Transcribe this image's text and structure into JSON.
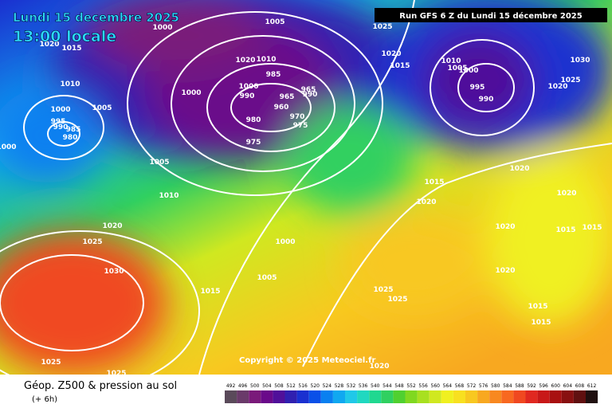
{
  "header": {
    "date": "Lundi 15 decembre 2025",
    "time": "13:00 locale",
    "run": "Run GFS 6 Z du Lundi 15 décembre 2025"
  },
  "map": {
    "copyright": "Copyright © 2025 Meteociel.fr",
    "isobar_labels": [
      "1005",
      "1000",
      "1015",
      "1020",
      "1010",
      "1005",
      "1000",
      "995",
      "990",
      "985",
      "980",
      "1000",
      "1005",
      "1010",
      "1020",
      "1025",
      "1030",
      "1015",
      "1005",
      "1000",
      "1025",
      "1025",
      "1020",
      "1010",
      "985",
      "1000",
      "990",
      "1000",
      "965",
      "960",
      "965",
      "990",
      "970",
      "975",
      "980",
      "975",
      "1025",
      "1020",
      "1015",
      "1010",
      "1005",
      "1000",
      "995",
      "990",
      "1030",
      "1025",
      "1020",
      "1015",
      "1020",
      "1020",
      "1020",
      "1020",
      "1015",
      "1015",
      "1020",
      "1015",
      "1015",
      "1025",
      "1025",
      "1020"
    ]
  },
  "footer": {
    "title": "Géop. Z500 & pression au sol",
    "subtitle": "(+ 6h)"
  },
  "legend": {
    "ticks": [
      492,
      496,
      500,
      504,
      508,
      512,
      516,
      520,
      524,
      528,
      532,
      536,
      540,
      544,
      548,
      552,
      556,
      560,
      564,
      568,
      572,
      576,
      580,
      584,
      588,
      592,
      596,
      600,
      604,
      608,
      612
    ],
    "colors": [
      "#5a4a5a",
      "#6a3a6a",
      "#7a1a7a",
      "#6a0a8a",
      "#50109a",
      "#3020b0",
      "#1a30d0",
      "#0a50e8",
      "#0a80f0",
      "#10a8f0",
      "#20c8e8",
      "#20d8c0",
      "#20d890",
      "#30d060",
      "#50d030",
      "#80d820",
      "#a8e020",
      "#d0e820",
      "#f0f020",
      "#f8e020",
      "#f8c820",
      "#f8a820",
      "#f88820",
      "#f86820",
      "#f04820",
      "#e02820",
      "#c81818",
      "#a81010",
      "#881010",
      "#601010",
      "#201010"
    ]
  }
}
